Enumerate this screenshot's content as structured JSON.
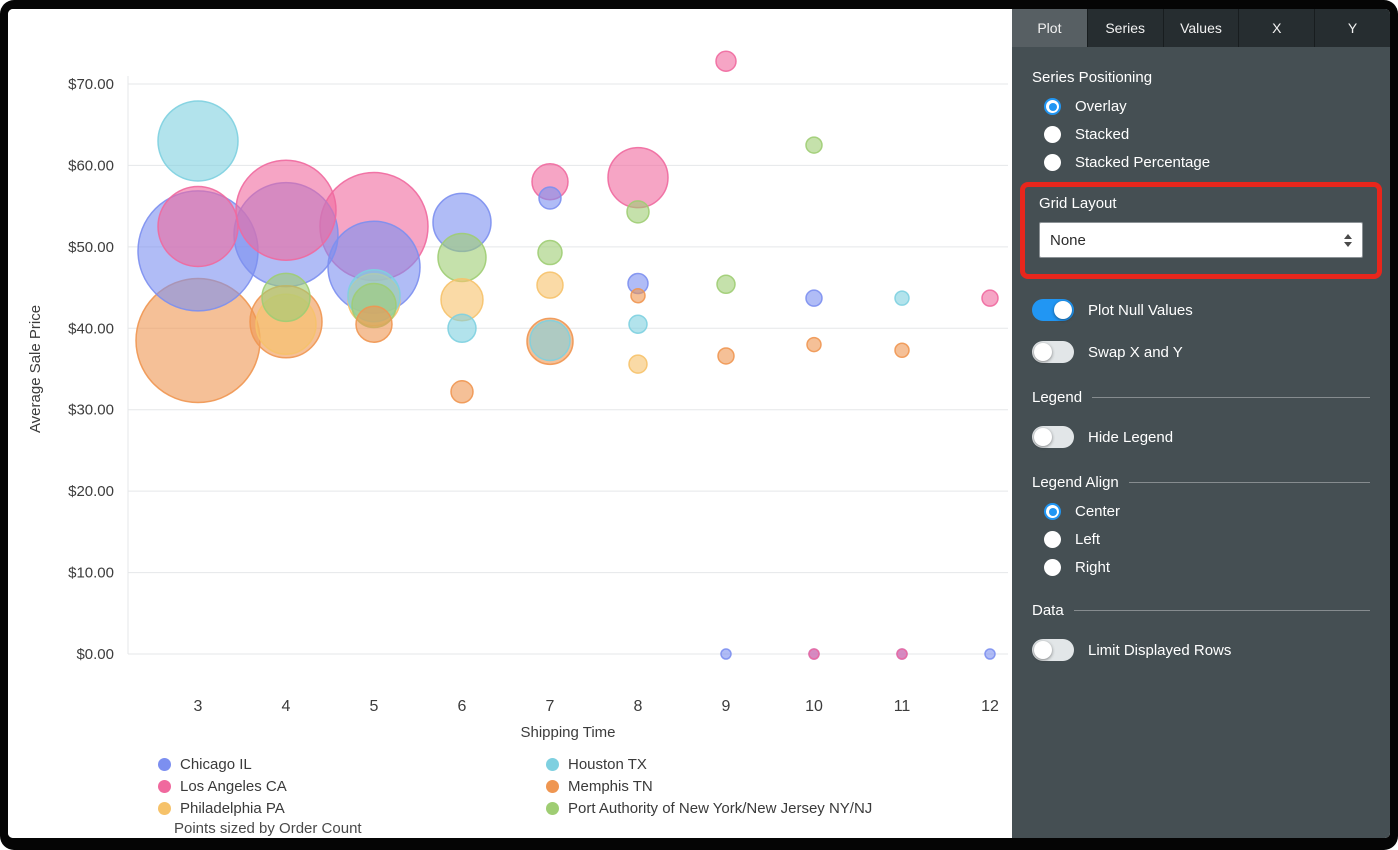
{
  "panel": {
    "tabs": [
      {
        "label": "Plot",
        "active": true
      },
      {
        "label": "Series",
        "active": false
      },
      {
        "label": "Values",
        "active": false
      },
      {
        "label": "X",
        "active": false
      },
      {
        "label": "Y",
        "active": false
      }
    ],
    "series_positioning": {
      "heading": "Series Positioning",
      "options": [
        {
          "label": "Overlay",
          "selected": true
        },
        {
          "label": "Stacked",
          "selected": false
        },
        {
          "label": "Stacked Percentage",
          "selected": false
        }
      ]
    },
    "grid_layout": {
      "heading": "Grid Layout",
      "value": "None"
    },
    "plot_null_values": {
      "label": "Plot Null Values",
      "on": true
    },
    "swap_x_y": {
      "label": "Swap X and Y",
      "on": false
    },
    "legend": {
      "heading": "Legend"
    },
    "hide_legend": {
      "label": "Hide Legend",
      "on": false
    },
    "legend_align": {
      "heading": "Legend Align",
      "options": [
        {
          "label": "Center",
          "selected": true
        },
        {
          "label": "Left",
          "selected": false
        },
        {
          "label": "Right",
          "selected": false
        }
      ]
    },
    "data_section": {
      "heading": "Data"
    },
    "limit_rows": {
      "label": "Limit Displayed Rows",
      "on": false
    }
  },
  "chart_data": {
    "type": "bubble",
    "title": "",
    "xlabel": "Shipping Time",
    "ylabel": "Average Sale Price",
    "x_ticks": [
      3,
      4,
      5,
      6,
      7,
      8,
      9,
      10,
      11,
      12
    ],
    "y_ticks": [
      0,
      10,
      20,
      30,
      40,
      50,
      60,
      70
    ],
    "y_tick_format": "$#.00",
    "xlim": [
      2.2,
      12.3
    ],
    "ylim": [
      0,
      75
    ],
    "grid": true,
    "legend_position": "bottom",
    "size_note": "Points sized by Order Count",
    "series": [
      {
        "name": "Chicago IL",
        "color": "#7c8ff0",
        "points": [
          {
            "x": 3,
            "y": 49.5,
            "r": 60
          },
          {
            "x": 4,
            "y": 51.5,
            "r": 52
          },
          {
            "x": 5,
            "y": 47.5,
            "r": 46
          },
          {
            "x": 6,
            "y": 53,
            "r": 29
          },
          {
            "x": 7,
            "y": 56,
            "r": 11
          },
          {
            "x": 8,
            "y": 45.5,
            "r": 10
          },
          {
            "x": 10,
            "y": 43.7,
            "r": 8
          },
          {
            "x": 9,
            "y": 0,
            "r": 5
          },
          {
            "x": 10,
            "y": 0,
            "r": 5
          },
          {
            "x": 11,
            "y": 0,
            "r": 5
          },
          {
            "x": 12,
            "y": 0,
            "r": 5
          }
        ]
      },
      {
        "name": "Los Angeles CA",
        "color": "#f0699e",
        "points": [
          {
            "x": 3,
            "y": 52.5,
            "r": 40
          },
          {
            "x": 4,
            "y": 54.5,
            "r": 50
          },
          {
            "x": 5,
            "y": 52.5,
            "r": 54
          },
          {
            "x": 7,
            "y": 58,
            "r": 18
          },
          {
            "x": 8,
            "y": 58.5,
            "r": 30
          },
          {
            "x": 9,
            "y": 72.8,
            "r": 10
          },
          {
            "x": 12,
            "y": 43.7,
            "r": 8
          },
          {
            "x": 10,
            "y": 0,
            "r": 5
          },
          {
            "x": 11,
            "y": 0,
            "r": 5
          }
        ]
      },
      {
        "name": "Philadelphia PA",
        "color": "#f6c26a",
        "points": [
          {
            "x": 4,
            "y": 40.5,
            "r": 30
          },
          {
            "x": 5,
            "y": 43.5,
            "r": 26
          },
          {
            "x": 6,
            "y": 43.5,
            "r": 21
          },
          {
            "x": 7,
            "y": 45.3,
            "r": 13
          },
          {
            "x": 8,
            "y": 35.6,
            "r": 9
          }
        ]
      },
      {
        "name": "Houston TX",
        "color": "#7ed0e0",
        "points": [
          {
            "x": 3,
            "y": 63,
            "r": 40
          },
          {
            "x": 5,
            "y": 44,
            "r": 26
          },
          {
            "x": 6,
            "y": 40,
            "r": 14
          },
          {
            "x": 7,
            "y": 38.5,
            "r": 20
          },
          {
            "x": 8,
            "y": 40.5,
            "r": 9
          },
          {
            "x": 11,
            "y": 43.7,
            "r": 7
          }
        ]
      },
      {
        "name": "Memphis TN",
        "color": "#ef9651",
        "points": [
          {
            "x": 3,
            "y": 38.5,
            "r": 62
          },
          {
            "x": 4,
            "y": 40.8,
            "r": 36
          },
          {
            "x": 5,
            "y": 40.5,
            "r": 18
          },
          {
            "x": 6,
            "y": 32.2,
            "r": 11
          },
          {
            "x": 7,
            "y": 38.4,
            "r": 23
          },
          {
            "x": 8,
            "y": 44,
            "r": 7
          },
          {
            "x": 9,
            "y": 36.6,
            "r": 8
          },
          {
            "x": 10,
            "y": 38,
            "r": 7
          },
          {
            "x": 11,
            "y": 37.3,
            "r": 7
          }
        ]
      },
      {
        "name": "Port Authority of New York/New Jersey NY/NJ",
        "color": "#9fcd73",
        "points": [
          {
            "x": 4,
            "y": 43.8,
            "r": 24
          },
          {
            "x": 5,
            "y": 42.8,
            "r": 22
          },
          {
            "x": 6,
            "y": 48.7,
            "r": 24
          },
          {
            "x": 7,
            "y": 49.3,
            "r": 12
          },
          {
            "x": 8,
            "y": 54.3,
            "r": 11
          },
          {
            "x": 9,
            "y": 45.4,
            "r": 9
          },
          {
            "x": 10,
            "y": 62.5,
            "r": 8
          }
        ]
      }
    ]
  }
}
